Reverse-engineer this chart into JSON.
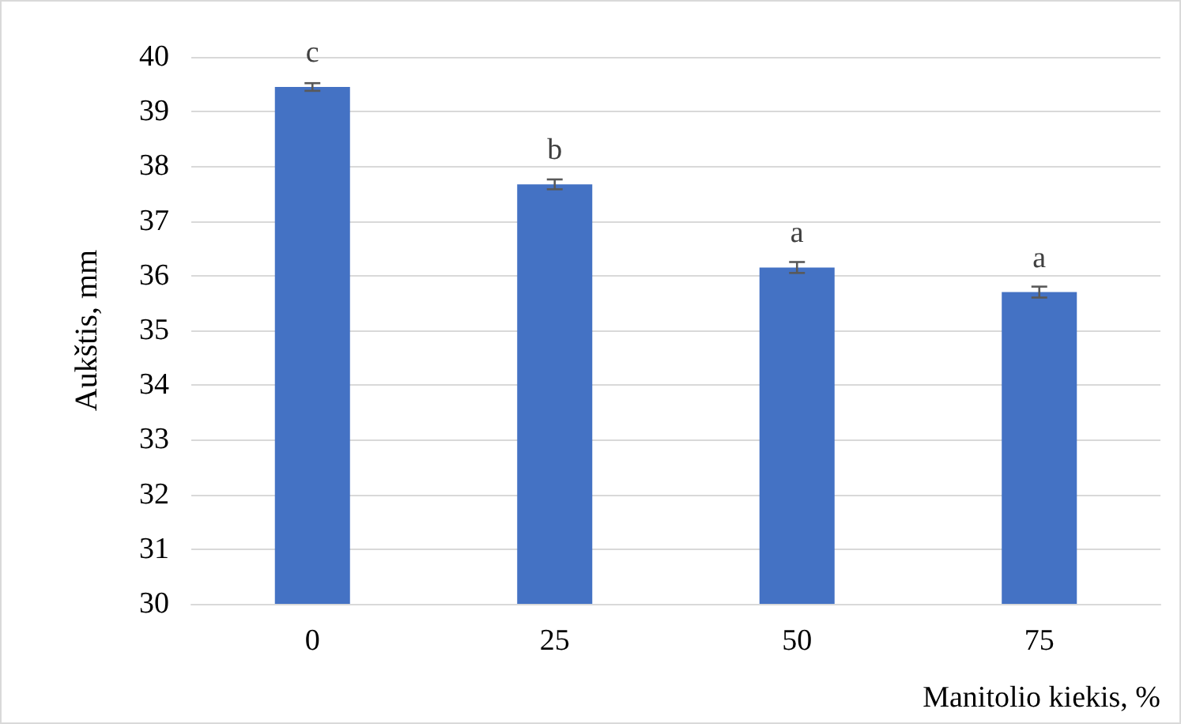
{
  "chart_data": {
    "type": "bar",
    "xlabel": "Manitolio kiekis, %",
    "ylabel": "Aukštis, mm",
    "categories": [
      "0",
      "25",
      "50",
      "75"
    ],
    "values": [
      39.45,
      37.67,
      36.15,
      35.7
    ],
    "errors": [
      0.07,
      0.09,
      0.1,
      0.1
    ],
    "color": "#4472c4",
    "ylim": [
      30,
      40
    ],
    "yticks": [
      30,
      31,
      32,
      33,
      34,
      35,
      36,
      37,
      38,
      39,
      40
    ],
    "grid": "y",
    "annotations": [
      {
        "text": "c",
        "x": "0",
        "y": 39.45
      },
      {
        "text": "b",
        "x": "25",
        "y": 37.67
      },
      {
        "text": "a",
        "x": "50",
        "y": 36.15
      },
      {
        "text": "a",
        "x": "75",
        "y": 35.7
      }
    ]
  }
}
